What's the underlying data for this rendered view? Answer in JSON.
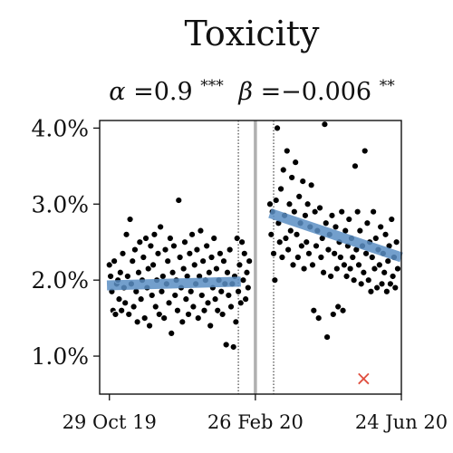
{
  "chart_data": {
    "type": "scatter",
    "title": "Toxicity",
    "subtitle": {
      "alpha_symbol": "α",
      "alpha_value": "=0.9",
      "alpha_sig": "***",
      "beta_symbol": "β",
      "beta_value": "=−0.006",
      "beta_sig": "**"
    },
    "xlabel": "",
    "ylabel": "",
    "x_tick_labels": [
      "29 Oct 19",
      "26 Feb 20",
      "24 Jun 20"
    ],
    "x_ticks": [
      0,
      120,
      240
    ],
    "xlim": [
      -8,
      240
    ],
    "y_tick_labels": [
      "1.0%",
      "2.0%",
      "3.0%",
      "4.0%"
    ],
    "y_ticks": [
      1.0,
      2.0,
      3.0,
      4.0
    ],
    "ylim": [
      0.5,
      4.1
    ],
    "grid": false,
    "vertical_lines": [
      {
        "x": 120,
        "style": "solid-gray"
      },
      {
        "x": 106,
        "style": "dotted"
      },
      {
        "x": 135,
        "style": "dotted"
      }
    ],
    "fit_lines": [
      {
        "x": [
          -2,
          108
        ],
        "y": [
          1.93,
          1.98
        ],
        "color": "#5b8fc4"
      },
      {
        "x": [
          132,
          240
        ],
        "y": [
          2.88,
          2.3
        ],
        "color": "#5b8fc4"
      }
    ],
    "outlier_marker": {
      "x": 209,
      "y": 0.7,
      "symbol": "×",
      "color": "#e05040"
    },
    "points": [
      [
        0,
        2.2
      ],
      [
        1,
        2.05
      ],
      [
        2,
        1.85
      ],
      [
        3,
        1.6
      ],
      [
        4,
        2.25
      ],
      [
        5,
        1.55
      ],
      [
        6,
        1.95
      ],
      [
        7,
        2.0
      ],
      [
        8,
        1.75
      ],
      [
        9,
        2.1
      ],
      [
        10,
        1.6
      ],
      [
        11,
        2.35
      ],
      [
        12,
        1.9
      ],
      [
        13,
        1.7
      ],
      [
        14,
        2.6
      ],
      [
        15,
        2.05
      ],
      [
        16,
        1.55
      ],
      [
        17,
        2.8
      ],
      [
        18,
        1.95
      ],
      [
        19,
        2.25
      ],
      [
        20,
        1.65
      ],
      [
        21,
        2.4
      ],
      [
        22,
        1.85
      ],
      [
        23,
        1.45
      ],
      [
        24,
        2.1
      ],
      [
        25,
        2.5
      ],
      [
        26,
        1.75
      ],
      [
        27,
        2.0
      ],
      [
        28,
        2.3
      ],
      [
        29,
        1.5
      ],
      [
        30,
        2.55
      ],
      [
        31,
        1.9
      ],
      [
        32,
        2.15
      ],
      [
        33,
        1.4
      ],
      [
        34,
        2.45
      ],
      [
        35,
        1.8
      ],
      [
        36,
        2.2
      ],
      [
        37,
        2.6
      ],
      [
        38,
        1.65
      ],
      [
        39,
        2.0
      ],
      [
        40,
        2.35
      ],
      [
        41,
        1.55
      ],
      [
        42,
        2.7
      ],
      [
        43,
        1.85
      ],
      [
        44,
        2.05
      ],
      [
        45,
        1.5
      ],
      [
        46,
        2.4
      ],
      [
        47,
        1.95
      ],
      [
        48,
        2.25
      ],
      [
        49,
        1.7
      ],
      [
        50,
        2.55
      ],
      [
        51,
        1.3
      ],
      [
        52,
        2.1
      ],
      [
        53,
        2.45
      ],
      [
        54,
        1.8
      ],
      [
        55,
        2.0
      ],
      [
        56,
        1.6
      ],
      [
        57,
        3.05
      ],
      [
        58,
        2.3
      ],
      [
        59,
        1.9
      ],
      [
        60,
        1.45
      ],
      [
        61,
        2.15
      ],
      [
        62,
        2.5
      ],
      [
        63,
        1.75
      ],
      [
        64,
        2.05
      ],
      [
        65,
        1.55
      ],
      [
        66,
        2.35
      ],
      [
        67,
        1.85
      ],
      [
        68,
        2.6
      ],
      [
        69,
        1.65
      ],
      [
        70,
        2.2
      ],
      [
        71,
        1.95
      ],
      [
        72,
        2.4
      ],
      [
        73,
        1.5
      ],
      [
        74,
        2.05
      ],
      [
        75,
        2.65
      ],
      [
        76,
        1.8
      ],
      [
        77,
        2.25
      ],
      [
        78,
        1.6
      ],
      [
        79,
        2.0
      ],
      [
        80,
        2.45
      ],
      [
        81,
        1.7
      ],
      [
        82,
        2.1
      ],
      [
        83,
        1.4
      ],
      [
        84,
        2.3
      ],
      [
        85,
        1.9
      ],
      [
        86,
        2.55
      ],
      [
        87,
        1.75
      ],
      [
        88,
        2.15
      ],
      [
        89,
        1.6
      ],
      [
        90,
        2.0
      ],
      [
        91,
        2.35
      ],
      [
        92,
        1.85
      ],
      [
        93,
        1.55
      ],
      [
        94,
        2.25
      ],
      [
        95,
        1.95
      ],
      [
        96,
        1.15
      ],
      [
        97,
        2.1
      ],
      [
        98,
        1.8
      ],
      [
        99,
        2.4
      ],
      [
        100,
        1.65
      ],
      [
        101,
        1.95
      ],
      [
        102,
        1.12
      ],
      [
        103,
        2.05
      ],
      [
        104,
        1.45
      ],
      [
        105,
        2.55
      ],
      [
        106,
        1.85
      ],
      [
        107,
        2.2
      ],
      [
        108,
        1.7
      ],
      [
        109,
        2.5
      ],
      [
        110,
        2.0
      ],
      [
        111,
        2.35
      ],
      [
        112,
        1.75
      ],
      [
        113,
        2.1
      ],
      [
        114,
        1.9
      ],
      [
        115,
        2.25
      ],
      [
        132,
        3.0
      ],
      [
        133,
        2.6
      ],
      [
        134,
        2.9
      ],
      [
        135,
        2.35
      ],
      [
        136,
        2.0
      ],
      [
        137,
        3.05
      ],
      [
        138,
        4.0
      ],
      [
        139,
        2.75
      ],
      [
        140,
        2.5
      ],
      [
        141,
        3.2
      ],
      [
        142,
        2.3
      ],
      [
        143,
        3.45
      ],
      [
        144,
        2.85
      ],
      [
        145,
        2.55
      ],
      [
        146,
        3.7
      ],
      [
        147,
        2.4
      ],
      [
        148,
        3.0
      ],
      [
        149,
        2.65
      ],
      [
        150,
        3.35
      ],
      [
        151,
        2.2
      ],
      [
        152,
        2.9
      ],
      [
        153,
        3.55
      ],
      [
        154,
        2.6
      ],
      [
        155,
        2.3
      ],
      [
        156,
        3.1
      ],
      [
        157,
        2.75
      ],
      [
        158,
        2.45
      ],
      [
        159,
        3.3
      ],
      [
        160,
        2.15
      ],
      [
        161,
        2.85
      ],
      [
        162,
        2.5
      ],
      [
        163,
        3.0
      ],
      [
        164,
        2.35
      ],
      [
        165,
        2.7
      ],
      [
        166,
        3.25
      ],
      [
        167,
        2.2
      ],
      [
        168,
        1.6
      ],
      [
        169,
        2.9
      ],
      [
        170,
        2.45
      ],
      [
        171,
        2.65
      ],
      [
        172,
        1.5
      ],
      [
        173,
        2.95
      ],
      [
        174,
        2.3
      ],
      [
        175,
        2.55
      ],
      [
        176,
        2.1
      ],
      [
        177,
        4.05
      ],
      [
        178,
        2.75
      ],
      [
        179,
        1.25
      ],
      [
        180,
        2.4
      ],
      [
        181,
        2.6
      ],
      [
        182,
        2.05
      ],
      [
        183,
        2.85
      ],
      [
        184,
        1.55
      ],
      [
        185,
        2.35
      ],
      [
        186,
        2.7
      ],
      [
        187,
        2.15
      ],
      [
        188,
        1.65
      ],
      [
        189,
        2.5
      ],
      [
        190,
        2.3
      ],
      [
        191,
        2.9
      ],
      [
        192,
        1.6
      ],
      [
        193,
        2.2
      ],
      [
        194,
        2.65
      ],
      [
        195,
        2.05
      ],
      [
        196,
        2.45
      ],
      [
        197,
        2.8
      ],
      [
        198,
        2.15
      ],
      [
        199,
        2.55
      ],
      [
        200,
        2.3
      ],
      [
        201,
        2.0
      ],
      [
        202,
        3.5
      ],
      [
        203,
        2.4
      ],
      [
        204,
        2.9
      ],
      [
        205,
        2.2
      ],
      [
        206,
        2.65
      ],
      [
        207,
        1.95
      ],
      [
        208,
        2.45
      ],
      [
        209,
        2.1
      ],
      [
        210,
        3.7
      ],
      [
        211,
        2.35
      ],
      [
        212,
        2.75
      ],
      [
        213,
        2.0
      ],
      [
        214,
        2.5
      ],
      [
        215,
        1.85
      ],
      [
        216,
        2.3
      ],
      [
        217,
        2.9
      ],
      [
        218,
        2.15
      ],
      [
        219,
        2.55
      ],
      [
        220,
        1.9
      ],
      [
        221,
        2.4
      ],
      [
        222,
        2.2
      ],
      [
        223,
        2.7
      ],
      [
        224,
        1.95
      ],
      [
        225,
        2.35
      ],
      [
        226,
        2.1
      ],
      [
        227,
        2.6
      ],
      [
        228,
        1.85
      ],
      [
        229,
        2.25
      ],
      [
        230,
        2.45
      ],
      [
        231,
        1.95
      ],
      [
        232,
        2.8
      ],
      [
        233,
        2.05
      ],
      [
        234,
        2.3
      ],
      [
        235,
        1.9
      ],
      [
        236,
        2.5
      ],
      [
        237,
        2.15
      ]
    ]
  }
}
